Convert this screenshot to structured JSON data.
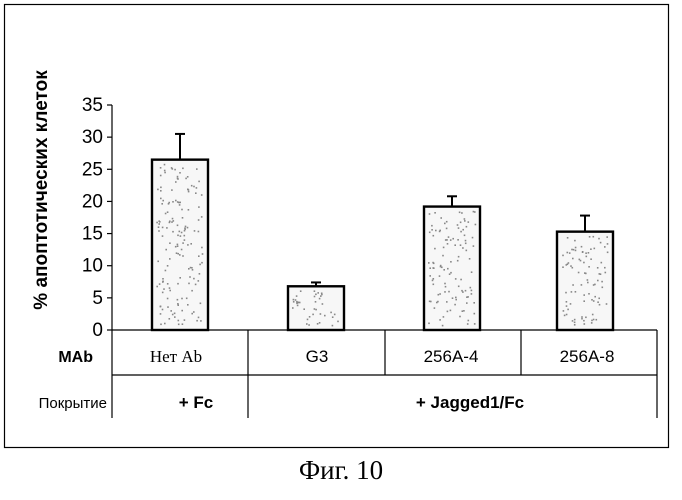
{
  "chart_data": {
    "type": "bar",
    "categories": [
      "Нет Ab",
      "G3",
      "256A-4",
      "256A-8"
    ],
    "values": [
      26.5,
      6.8,
      19.2,
      15.3
    ],
    "errors": [
      4.0,
      0.6,
      1.6,
      2.5
    ],
    "ylabel": "% апоптотических клеток",
    "ylim": [
      0,
      35
    ],
    "yticks": [
      0,
      5,
      10,
      15,
      20,
      25,
      30,
      35
    ],
    "grid": false,
    "bar_fill": "#f7f7f7",
    "bar_stroke": "#000000",
    "speckle_color": "#888888"
  },
  "table": {
    "row1_header": "MAb",
    "row2_header": "Покрытие",
    "coatings": [
      "+ Fc",
      "+  Jagged1/Fc"
    ]
  },
  "caption": "Фиг. 10"
}
